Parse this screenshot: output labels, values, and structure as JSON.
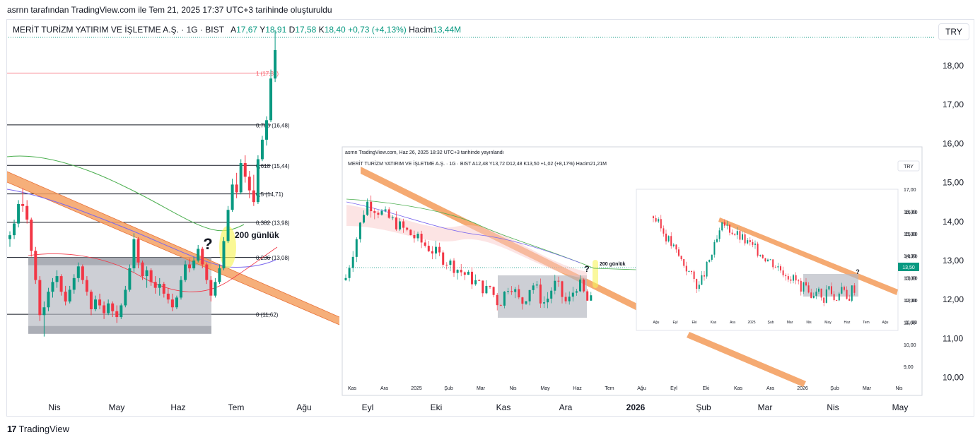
{
  "header": {
    "attribution": "asrnn tarafından TradingView.com ile Tem 21, 2025 17:37 UTC+3 tarihinde oluşturuldu"
  },
  "legend": {
    "symbol": "MERİT TURİZM YATIRIM VE İŞLETME A.Ş. · 1G · BIST",
    "open_label": "A",
    "open": "17,67",
    "high_label": "Y",
    "high": "18,91",
    "low_label": "D",
    "low": "17,58",
    "close_label": "K",
    "close": "18,40",
    "change": "+0,73 (+4,13%)",
    "volume_label": "Hacim",
    "volume": "13,44M"
  },
  "currency_button": "TRY",
  "footer": {
    "brand": "TradingView",
    "logo_glyph": "17"
  },
  "colors": {
    "up": "#089981",
    "down": "#f23645",
    "fib_top": "#f7525f",
    "trend_band": "#f4a163",
    "ma_green": "#4caf50",
    "ma_blue": "#7b68ee",
    "box": "#b2b5be",
    "highlight": "#f7f45c"
  },
  "chart_data": {
    "type": "candlestick",
    "symbol": "MERİT TURİZM YATIRIM VE İŞLETME A.Ş.",
    "interval": "1G",
    "exchange": "BIST",
    "currency": "TRY",
    "y_axis": {
      "position": "right",
      "ylim": [
        9.6,
        18.8
      ],
      "ticks": [
        "18,00",
        "17,00",
        "16,00",
        "15,00",
        "14,00",
        "13,00",
        "12,00",
        "11,00",
        "10,00"
      ],
      "tick_values": [
        18,
        17,
        16,
        15,
        14,
        13,
        12,
        11,
        10
      ]
    },
    "x_axis": {
      "ticks": [
        "Nis",
        "May",
        "Haz",
        "Tem",
        "Ağu",
        "Eyl",
        "Eki",
        "Kas",
        "Ara",
        "2026",
        "Şub",
        "Mar",
        "Nis",
        "May"
      ],
      "bold_ticks": [
        "2026"
      ]
    },
    "fibonacci": [
      {
        "label": "1 (17,81)",
        "level": 1,
        "price": 17.81
      },
      {
        "label": "0,786 (16,48)",
        "level": 0.786,
        "price": 16.48
      },
      {
        "label": "0,618 (15,44)",
        "level": 0.618,
        "price": 15.44
      },
      {
        "label": "0,5 (14,71)",
        "level": 0.5,
        "price": 14.71
      },
      {
        "label": "0,382 (13,98)",
        "level": 0.382,
        "price": 13.98
      },
      {
        "label": "0,236 (13,08)",
        "level": 0.236,
        "price": 13.08
      },
      {
        "label": "0 (11,62)",
        "level": 0,
        "price": 11.62
      }
    ],
    "annotations": [
      "?",
      "200 günlük"
    ],
    "last_price_marker": "18,40",
    "candles": [
      {
        "o": 13.55,
        "h": 13.75,
        "l": 13.35,
        "c": 13.65
      },
      {
        "o": 13.65,
        "h": 14.05,
        "l": 13.55,
        "c": 13.95
      },
      {
        "o": 13.95,
        "h": 14.55,
        "l": 13.85,
        "c": 14.45
      },
      {
        "o": 14.45,
        "h": 14.85,
        "l": 14.25,
        "c": 14.4
      },
      {
        "o": 14.4,
        "h": 14.55,
        "l": 13.95,
        "c": 14.05
      },
      {
        "o": 14.05,
        "h": 14.1,
        "l": 13.1,
        "c": 13.25
      },
      {
        "o": 13.25,
        "h": 13.35,
        "l": 12.4,
        "c": 12.5
      },
      {
        "o": 12.5,
        "h": 12.6,
        "l": 11.45,
        "c": 11.6
      },
      {
        "o": 11.6,
        "h": 11.95,
        "l": 11.05,
        "c": 11.8
      },
      {
        "o": 11.8,
        "h": 12.3,
        "l": 11.7,
        "c": 12.2
      },
      {
        "o": 12.2,
        "h": 12.55,
        "l": 12.05,
        "c": 12.45
      },
      {
        "o": 12.45,
        "h": 12.75,
        "l": 12.3,
        "c": 12.6
      },
      {
        "o": 12.6,
        "h": 12.65,
        "l": 12.1,
        "c": 12.2
      },
      {
        "o": 12.2,
        "h": 12.35,
        "l": 11.85,
        "c": 11.95
      },
      {
        "o": 11.95,
        "h": 12.35,
        "l": 11.9,
        "c": 12.25
      },
      {
        "o": 12.25,
        "h": 12.65,
        "l": 12.15,
        "c": 12.55
      },
      {
        "o": 12.55,
        "h": 12.95,
        "l": 12.45,
        "c": 12.85
      },
      {
        "o": 12.85,
        "h": 12.9,
        "l": 12.4,
        "c": 12.5
      },
      {
        "o": 12.5,
        "h": 12.6,
        "l": 12.1,
        "c": 12.2
      },
      {
        "o": 12.2,
        "h": 12.25,
        "l": 11.6,
        "c": 11.75
      },
      {
        "o": 11.75,
        "h": 12.1,
        "l": 11.7,
        "c": 12.0
      },
      {
        "o": 12.0,
        "h": 12.15,
        "l": 11.75,
        "c": 11.85
      },
      {
        "o": 11.85,
        "h": 11.95,
        "l": 11.5,
        "c": 11.65
      },
      {
        "o": 11.65,
        "h": 12.0,
        "l": 11.6,
        "c": 11.9
      },
      {
        "o": 11.9,
        "h": 11.95,
        "l": 11.55,
        "c": 11.7
      },
      {
        "o": 11.7,
        "h": 11.85,
        "l": 11.4,
        "c": 11.55
      },
      {
        "o": 11.55,
        "h": 11.9,
        "l": 11.5,
        "c": 11.85
      },
      {
        "o": 11.85,
        "h": 12.35,
        "l": 11.8,
        "c": 12.25
      },
      {
        "o": 12.25,
        "h": 12.9,
        "l": 12.2,
        "c": 12.8
      },
      {
        "o": 12.8,
        "h": 13.7,
        "l": 12.7,
        "c": 13.55
      },
      {
        "o": 13.55,
        "h": 13.6,
        "l": 12.8,
        "c": 12.95
      },
      {
        "o": 12.95,
        "h": 13.0,
        "l": 12.5,
        "c": 12.6
      },
      {
        "o": 12.6,
        "h": 12.85,
        "l": 12.3,
        "c": 12.75
      },
      {
        "o": 12.75,
        "h": 12.8,
        "l": 12.35,
        "c": 12.45
      },
      {
        "o": 12.45,
        "h": 12.6,
        "l": 12.15,
        "c": 12.3
      },
      {
        "o": 12.3,
        "h": 12.55,
        "l": 12.1,
        "c": 12.4
      },
      {
        "o": 12.4,
        "h": 12.45,
        "l": 12.05,
        "c": 12.15
      },
      {
        "o": 12.15,
        "h": 12.3,
        "l": 11.9,
        "c": 12.0
      },
      {
        "o": 12.0,
        "h": 12.15,
        "l": 11.7,
        "c": 11.8
      },
      {
        "o": 11.8,
        "h": 12.1,
        "l": 11.75,
        "c": 12.05
      },
      {
        "o": 12.05,
        "h": 12.6,
        "l": 12.0,
        "c": 12.5
      },
      {
        "o": 12.5,
        "h": 13.0,
        "l": 12.45,
        "c": 12.9
      },
      {
        "o": 12.9,
        "h": 13.05,
        "l": 12.7,
        "c": 12.8
      },
      {
        "o": 12.8,
        "h": 13.1,
        "l": 12.75,
        "c": 13.0
      },
      {
        "o": 13.0,
        "h": 13.4,
        "l": 12.95,
        "c": 13.3
      },
      {
        "o": 13.3,
        "h": 13.35,
        "l": 12.8,
        "c": 12.9
      },
      {
        "o": 12.9,
        "h": 12.95,
        "l": 12.4,
        "c": 12.5
      },
      {
        "o": 12.5,
        "h": 12.6,
        "l": 11.95,
        "c": 12.1
      },
      {
        "o": 12.1,
        "h": 12.55,
        "l": 12.05,
        "c": 12.45
      },
      {
        "o": 12.45,
        "h": 12.9,
        "l": 12.4,
        "c": 12.8
      },
      {
        "o": 12.8,
        "h": 13.6,
        "l": 12.75,
        "c": 13.5
      },
      {
        "o": 13.5,
        "h": 14.4,
        "l": 13.45,
        "c": 14.3
      },
      {
        "o": 14.3,
        "h": 15.1,
        "l": 14.25,
        "c": 14.95
      },
      {
        "o": 14.95,
        "h": 15.25,
        "l": 14.6,
        "c": 14.75
      },
      {
        "o": 14.75,
        "h": 15.6,
        "l": 14.7,
        "c": 15.5
      },
      {
        "o": 15.5,
        "h": 15.7,
        "l": 15.0,
        "c": 15.15
      },
      {
        "o": 15.15,
        "h": 15.3,
        "l": 14.6,
        "c": 14.8
      },
      {
        "o": 14.8,
        "h": 15.2,
        "l": 14.4,
        "c": 14.5
      },
      {
        "o": 14.5,
        "h": 15.7,
        "l": 14.45,
        "c": 15.6
      },
      {
        "o": 15.6,
        "h": 16.2,
        "l": 15.55,
        "c": 16.1
      },
      {
        "o": 16.1,
        "h": 16.7,
        "l": 15.95,
        "c": 16.6
      },
      {
        "o": 16.6,
        "h": 17.9,
        "l": 16.55,
        "c": 17.67
      },
      {
        "o": 17.67,
        "h": 18.91,
        "l": 17.58,
        "c": 18.4
      }
    ]
  },
  "inset_1": {
    "attribution": "asrnn TradingView.com, Haz 26, 2025 18:32 UTC+3 tarihinde yayınlandı",
    "legend": "MERİT TURİZM YATIRIM VE İŞLETME A.Ş. · 1G · BIST  A12,48  Y13,72  D12,48  K13,50  +1,02 (+8,17%)  Hacim21,21M",
    "currency_button": "TRY",
    "annotations": [
      "?",
      "200 günlük"
    ],
    "y_ticks": [
      "17,00",
      "16,00",
      "15,00",
      "14,00",
      "13,00",
      "12,00",
      "11,00",
      "10,00",
      "9,00"
    ],
    "y_values": [
      17,
      16,
      15,
      14,
      13,
      12,
      11,
      10,
      9
    ],
    "last_price_marker": "13,50",
    "x_ticks": [
      "Kas",
      "Ara",
      "2025",
      "Şub",
      "Mar",
      "Nis",
      "May",
      "Haz",
      "Tem",
      "Ağu",
      "Eyl",
      "Eki",
      "Kas",
      "Ara",
      "2026",
      "Şub",
      "Mar",
      "Nis"
    ]
  },
  "inset_2": {
    "annotations": [
      "?"
    ],
    "y_ticks": [
      "16,00",
      "15,00",
      "14,00",
      "13,00",
      "12,00",
      "11,00"
    ],
    "x_ticks": [
      "Ağu",
      "Eyl",
      "Eki",
      "Kas",
      "Ara",
      "2025",
      "Şub",
      "Mar",
      "Nis",
      "May",
      "Haz",
      "Tem",
      "Ağu"
    ]
  }
}
